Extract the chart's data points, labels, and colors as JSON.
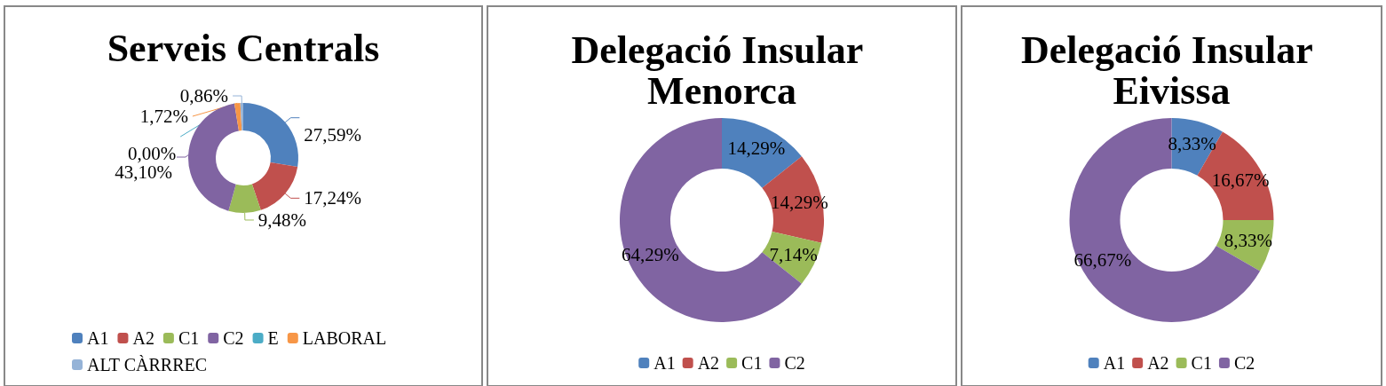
{
  "chart_data": [
    {
      "type": "donut",
      "title": "Serveis Centrals",
      "categories": [
        "A1",
        "A2",
        "C1",
        "C2",
        "E",
        "LABORAL",
        "ALT CÀRRREC"
      ],
      "values": [
        27.59,
        17.24,
        9.48,
        43.1,
        0.0,
        1.72,
        0.86
      ],
      "value_labels": [
        "27,59%",
        "17,24%",
        "9,48%",
        "43,10%",
        "0,00%",
        "1,72%",
        "0,86%"
      ],
      "colors": [
        "#4f81bd",
        "#c0504d",
        "#9bbb59",
        "#8064a2",
        "#4bacc6",
        "#f79646",
        "#95b3d7"
      ],
      "legend": "bottom"
    },
    {
      "type": "donut",
      "title": "Delegació Insular Menorca",
      "categories": [
        "A1",
        "A2",
        "C1",
        "C2"
      ],
      "values": [
        14.29,
        14.29,
        7.14,
        64.29
      ],
      "value_labels": [
        "14,29%",
        "14,29%",
        "7,14%",
        "64,29%"
      ],
      "colors": [
        "#4f81bd",
        "#c0504d",
        "#9bbb59",
        "#8064a2"
      ],
      "legend": "bottom"
    },
    {
      "type": "donut",
      "title": "Delegació Insular Eivissa",
      "categories": [
        "A1",
        "A2",
        "C1",
        "C2"
      ],
      "values": [
        8.33,
        16.67,
        8.33,
        66.67
      ],
      "value_labels": [
        "8,33%",
        "16,67%",
        "8,33%",
        "66,67%"
      ],
      "colors": [
        "#4f81bd",
        "#c0504d",
        "#9bbb59",
        "#8064a2"
      ],
      "legend": "bottom"
    }
  ]
}
